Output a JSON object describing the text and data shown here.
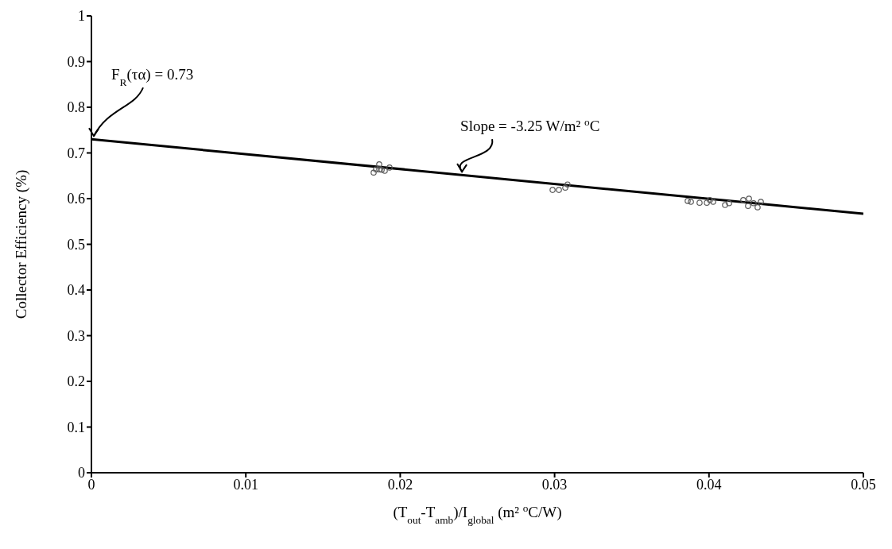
{
  "chart_data": {
    "type": "scatter",
    "xlabel": "(T$_{out}$-T$_{amb}$)/I$_{global}$  (m² $^{o}$C/W)",
    "ylabel": "Collector Efficiency (%)",
    "xlim": [
      0,
      0.05
    ],
    "xticks": [
      0,
      0.01,
      0.02,
      0.03,
      0.04,
      0.05
    ],
    "ylim": [
      0,
      1
    ],
    "yticks": [
      0,
      0.1,
      0.2,
      0.3,
      0.4,
      0.5,
      0.6,
      0.7,
      0.8,
      0.9,
      1
    ],
    "series": [
      {
        "type": "scatter",
        "color": "#595959",
        "marker": "circle",
        "x": [
          0.01828,
          0.01843,
          0.01864,
          0.01864,
          0.0188,
          0.019,
          0.01931,
          0.02987,
          0.03028,
          0.03069,
          0.03084,
          0.03862,
          0.03883,
          0.03939,
          0.03986,
          0.04006,
          0.04027,
          0.04104,
          0.0413,
          0.04222,
          0.04259,
          0.04253,
          0.04289,
          0.04315,
          0.04336
        ],
        "values": [
          0.657,
          0.664,
          0.675,
          0.664,
          0.663,
          0.661,
          0.668,
          0.619,
          0.619,
          0.624,
          0.631,
          0.595,
          0.593,
          0.591,
          0.591,
          0.597,
          0.593,
          0.586,
          0.59,
          0.597,
          0.6,
          0.584,
          0.59,
          0.581,
          0.593
        ]
      },
      {
        "type": "line",
        "color": "#000000",
        "marker": "none",
        "line_style": "solid",
        "x": [
          0,
          0.05
        ],
        "values": [
          0.73,
          0.567
        ]
      }
    ],
    "annotations": [
      {
        "text": "F$_{R}$(τα) = 0.73",
        "x": 0,
        "y": 0.73
      },
      {
        "text": "Slope = -3.25 W/m² $^{o}$C",
        "x": 0.024,
        "y": 0.652
      }
    ]
  }
}
